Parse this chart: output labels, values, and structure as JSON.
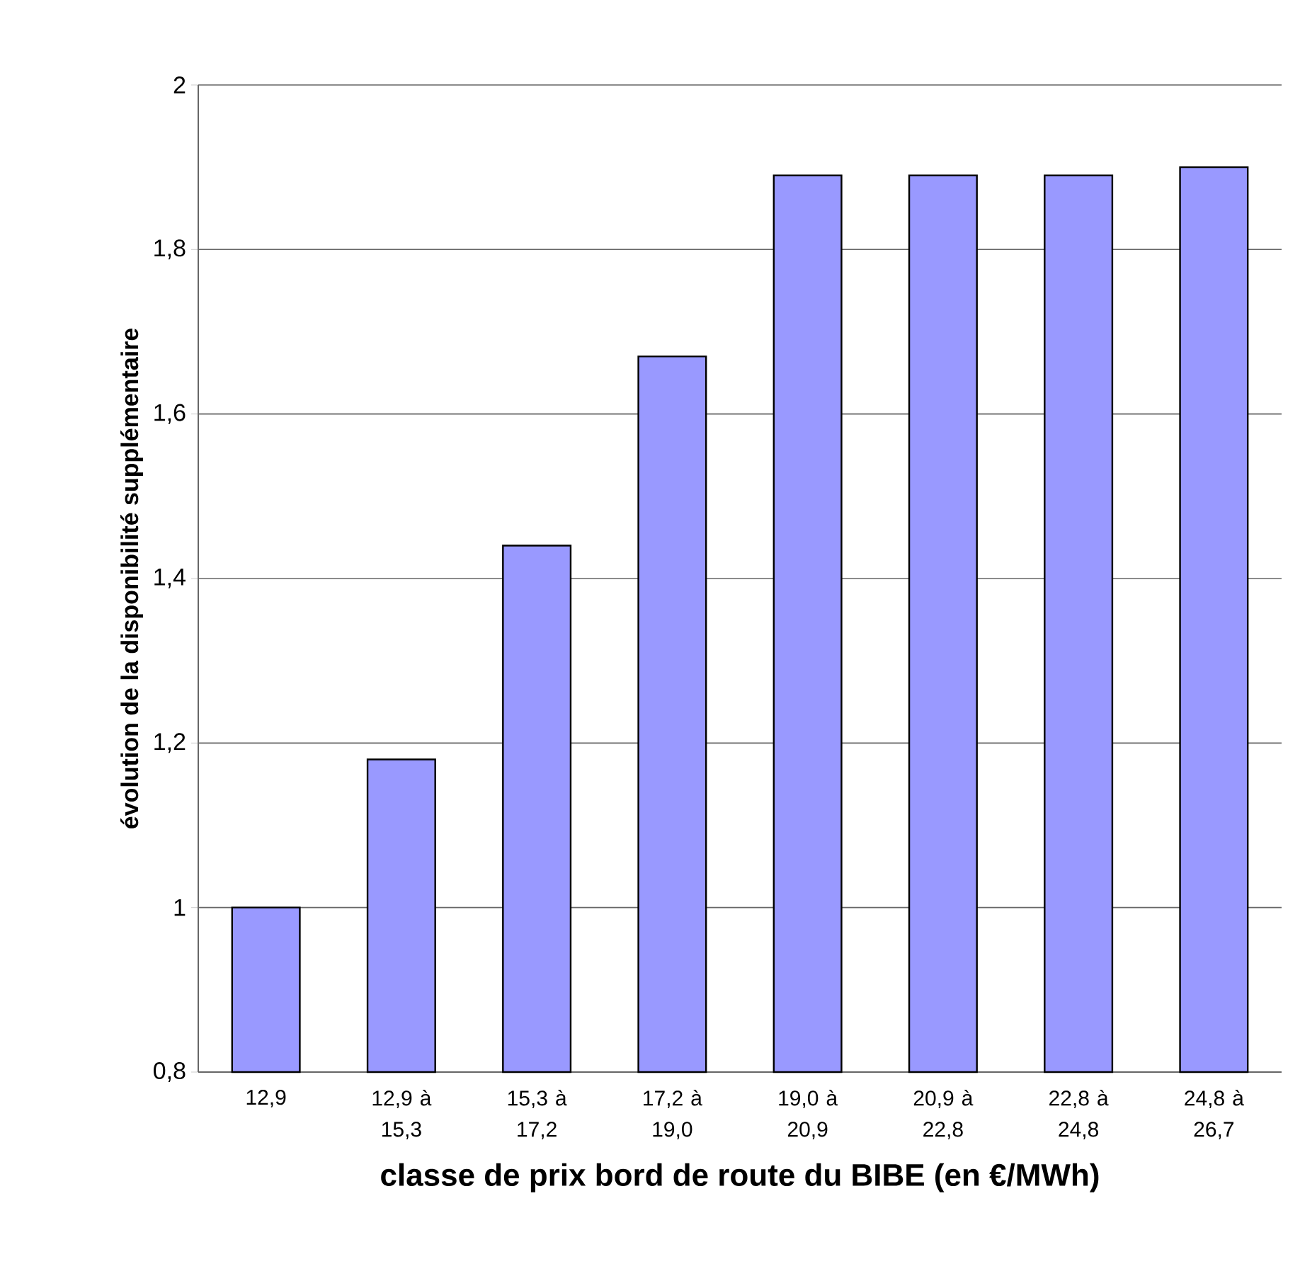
{
  "chart_data": {
    "type": "bar",
    "xlabel": "classe de prix bord de route du BIBE (en €/MWh)",
    "ylabel": "évolution de la disponibilité supplémentaire",
    "categories": [
      "12,9",
      "12,9 à 15,3",
      "15,3 à 17,2",
      "17,2 à 19,0",
      "19,0 à 20,9",
      "20,9 à 22,8",
      "22,8 à 24,8",
      "24,8 à 26,7"
    ],
    "values": [
      1.0,
      1.18,
      1.44,
      1.67,
      1.89,
      1.89,
      1.89,
      1.9
    ],
    "color": "#9999ff",
    "ylim": [
      0.8,
      2
    ],
    "yticks": [
      {
        "value": 0.8,
        "label": "0,8"
      },
      {
        "value": 1,
        "label": "1"
      },
      {
        "value": 1.2,
        "label": "1,2"
      },
      {
        "value": 1.4,
        "label": "1,4"
      },
      {
        "value": 1.6,
        "label": "1,6"
      },
      {
        "value": 1.8,
        "label": "1,8"
      },
      {
        "value": 2,
        "label": "2"
      }
    ],
    "grid": "y"
  }
}
